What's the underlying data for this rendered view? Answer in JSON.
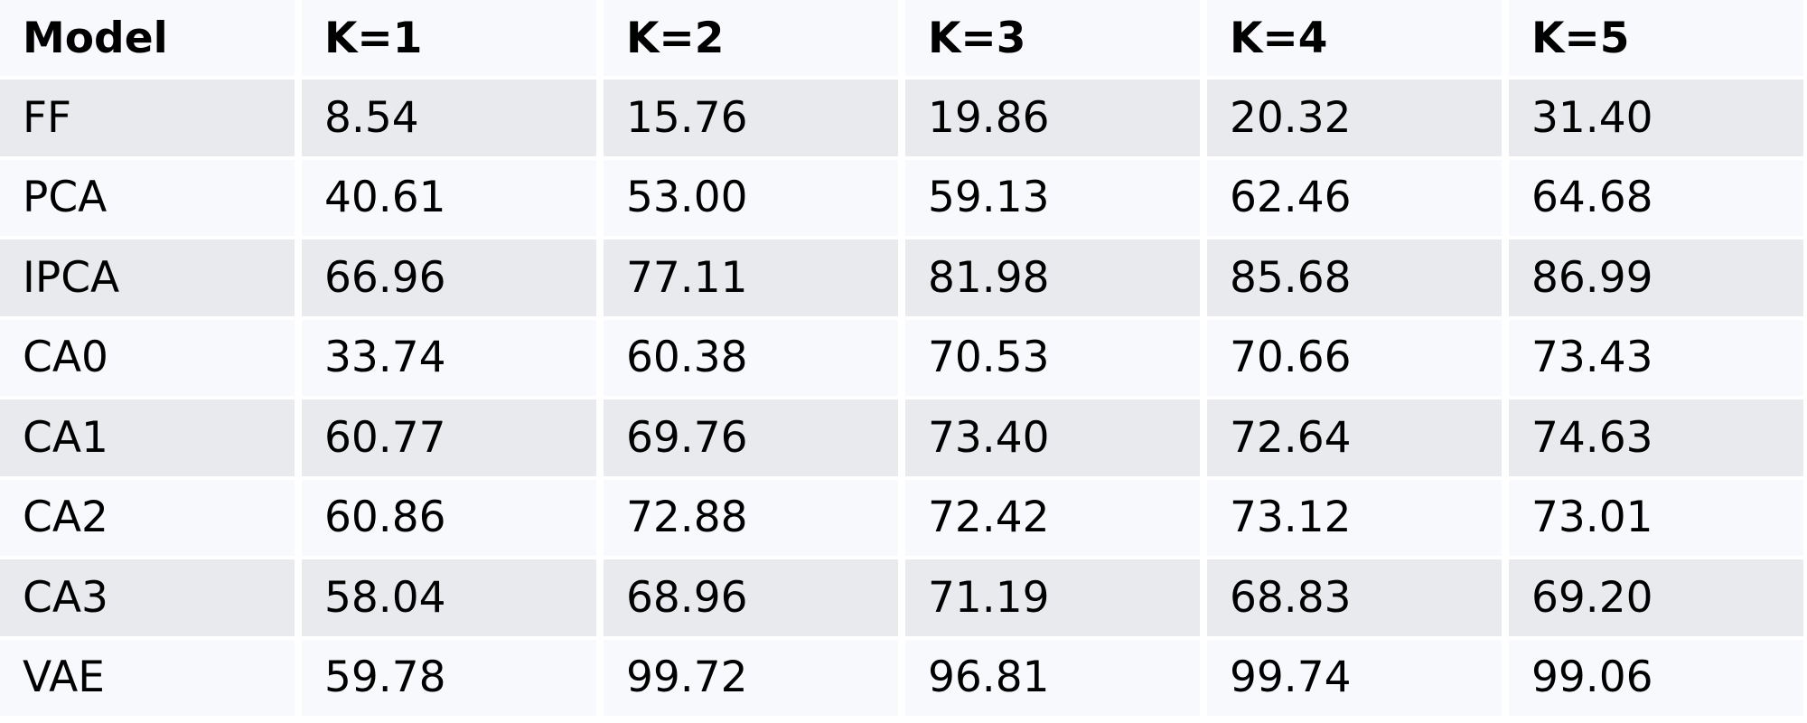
{
  "table": {
    "headers": [
      "Model",
      "K=1",
      "K=2",
      "K=3",
      "K=4",
      "K=5"
    ],
    "rows": [
      [
        "FF",
        "8.54",
        "15.76",
        "19.86",
        "20.32",
        "31.40"
      ],
      [
        "PCA",
        "40.61",
        "53.00",
        "59.13",
        "62.46",
        "64.68"
      ],
      [
        "IPCA",
        "66.96",
        "77.11",
        "81.98",
        "85.68",
        "86.99"
      ],
      [
        "CA0",
        "33.74",
        "60.38",
        "70.53",
        "70.66",
        "73.43"
      ],
      [
        "CA1",
        "60.77",
        "69.76",
        "73.40",
        "72.64",
        "74.63"
      ],
      [
        "CA2",
        "60.86",
        "72.88",
        "72.42",
        "73.12",
        "73.01"
      ],
      [
        "CA3",
        "58.04",
        "68.96",
        "71.19",
        "68.83",
        "69.20"
      ],
      [
        "VAE",
        "59.78",
        "99.72",
        "96.81",
        "99.74",
        "99.06"
      ]
    ]
  },
  "colors": {
    "row_shaded": "#e9eaee",
    "row_light": "#f8f9fd",
    "text": "#000000"
  }
}
